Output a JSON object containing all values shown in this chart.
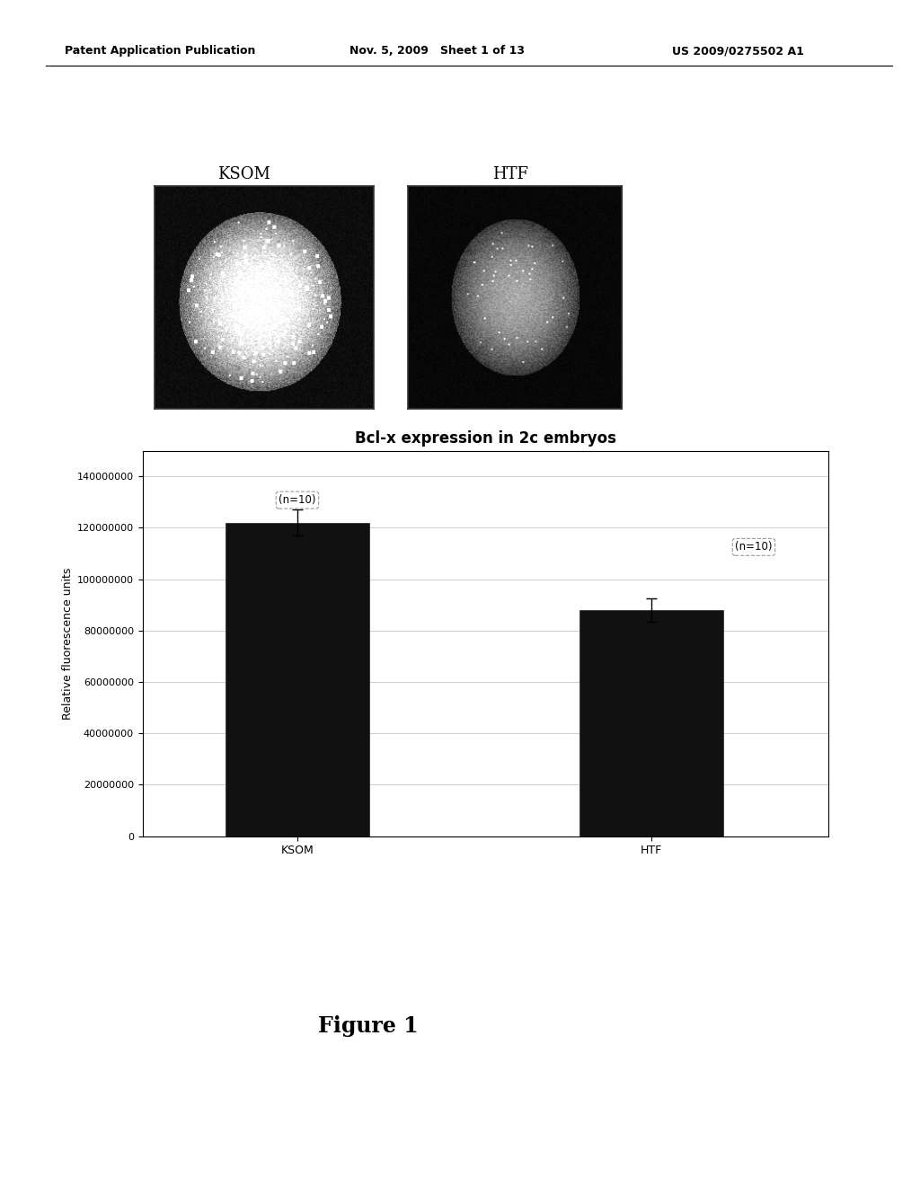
{
  "header_left": "Patent Application Publication",
  "header_mid": "Nov. 5, 2009   Sheet 1 of 13",
  "header_right": "US 2009/0275502 A1",
  "img_label_ksom": "KSOM",
  "img_label_htf": "HTF",
  "chart_title": "Bcl-x expression in 2c embryos",
  "chart_ylabel": "Relative fluorescence units",
  "bar_values": [
    122000000,
    88000000
  ],
  "bar_errors": [
    5000000,
    4500000
  ],
  "bar_color": "#111111",
  "bar_labels": [
    "KSOM",
    "HTF"
  ],
  "n_labels": [
    "(n=10)",
    "(n=10)"
  ],
  "yticks": [
    0,
    20000000,
    40000000,
    60000000,
    80000000,
    100000000,
    120000000,
    140000000
  ],
  "ylim": [
    0,
    150000000
  ],
  "figure_caption": "Figure 1",
  "background_color": "#ffffff",
  "header_fontsize": 9,
  "img_label_fontsize": 13,
  "chart_title_fontsize": 12,
  "chart_tick_fontsize": 8,
  "chart_ylabel_fontsize": 9,
  "caption_fontsize": 17
}
